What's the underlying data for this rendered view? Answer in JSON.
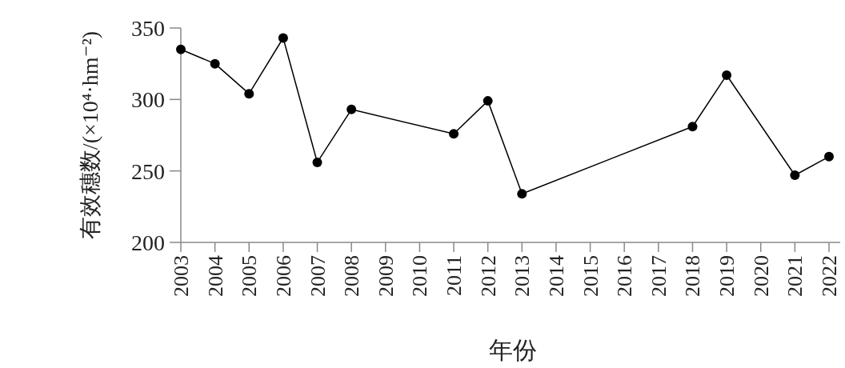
{
  "chart_data": {
    "type": "line",
    "xlabel": "年份",
    "ylabel": "有效穗数/(×10⁴·hm⁻²)",
    "categories": [
      "2003",
      "2004",
      "2005",
      "2006",
      "2007",
      "2008",
      "2009",
      "2010",
      "2011",
      "2012",
      "2013",
      "2014",
      "2015",
      "2016",
      "2017",
      "2018",
      "2019",
      "2020",
      "2021",
      "2022"
    ],
    "series": [
      {
        "color": "#000000",
        "values": [
          335,
          325,
          304,
          343,
          256,
          293,
          null,
          null,
          276,
          299,
          234,
          null,
          null,
          null,
          null,
          281,
          317,
          null,
          247,
          260
        ]
      }
    ],
    "ylim": [
      200,
      350
    ],
    "yticks": [
      200,
      250,
      300,
      350
    ],
    "grid": false,
    "marker": "circle",
    "line_style": "solid"
  }
}
